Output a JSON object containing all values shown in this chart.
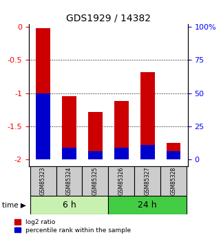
{
  "title": "GDS1929 / 14382",
  "samples": [
    "GSM85323",
    "GSM85324",
    "GSM85325",
    "GSM85326",
    "GSM85327",
    "GSM85328"
  ],
  "log2_ratio_top": [
    -0.02,
    -1.05,
    -1.28,
    -1.12,
    -0.68,
    -1.75
  ],
  "log2_ratio_bottom": [
    -2.0,
    -2.0,
    -2.0,
    -2.0,
    -2.0,
    -2.0
  ],
  "blue_top": [
    -1.0,
    -1.82,
    -1.88,
    -1.82,
    -1.78,
    -1.88
  ],
  "blue_bottom": [
    -2.0,
    -2.0,
    -2.0,
    -2.0,
    -2.0,
    -2.0
  ],
  "left_yticks": [
    0,
    -0.5,
    -1.0,
    -1.5,
    -2.0
  ],
  "left_ytick_labels": [
    "0",
    "-0.5",
    "-1",
    "-1.5",
    "-2"
  ],
  "right_yticks_pos": [
    0,
    -0.5,
    -1.0,
    -1.5,
    -2.0
  ],
  "right_ytick_labels": [
    "100%",
    "75",
    "50",
    "25",
    "0"
  ],
  "time_groups": [
    {
      "label": "6 h",
      "indices": [
        0,
        1,
        2
      ],
      "color": "#c8f0b0"
    },
    {
      "label": "24 h",
      "indices": [
        3,
        4,
        5
      ],
      "color": "#44cc44"
    }
  ],
  "bar_color": "#cc0000",
  "blue_color": "#0000cc",
  "gray_color": "#cccccc",
  "legend_red": "log2 ratio",
  "legend_blue": "percentile rank within the sample"
}
